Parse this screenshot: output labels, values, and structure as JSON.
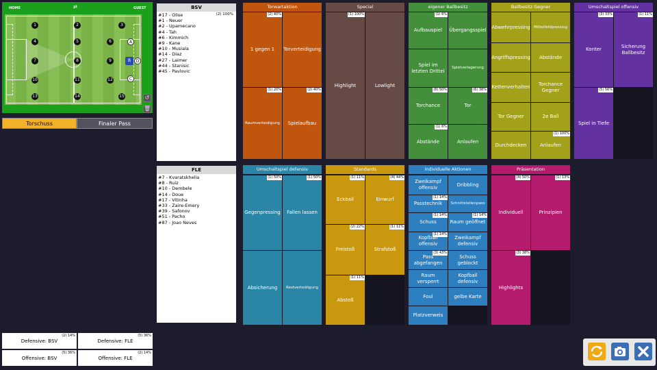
{
  "pitch": {
    "home_label": "HOME",
    "guest_label": "GUEST",
    "swap_label": "⇄",
    "home_players": [
      "1",
      "2",
      "3",
      "4",
      "5",
      "6",
      "7",
      "8",
      "9",
      "10",
      "11",
      "12",
      "13",
      "14",
      "15"
    ],
    "gk_label": "B",
    "away_players": [
      "A",
      "C",
      "D"
    ]
  },
  "modes": {
    "left": "Torschuss",
    "right": "Finaler Pass"
  },
  "teams": [
    {
      "name": "BSV",
      "count": "(2) 100%",
      "players": [
        "#17 - Olise",
        "#1 - Neuer",
        "#2 - Upamecano",
        "#4 - Tah",
        "#6 - Kimmich",
        "#9 - Kane",
        "#10 - Musiala",
        "#14 - Diaz",
        "#27 - Laimer",
        "#44 - Stanisic",
        "#45 - Pavlovic"
      ]
    },
    {
      "name": "FLE",
      "count": "",
      "players": [
        "#7 - Kvaratskhelia",
        "#8 - Ruiz",
        "#10 - Dembele",
        "#14 - Doue",
        "#17 - Vitinha",
        "#33 - Zaire-Emery",
        "#39 - Safonov",
        "#51 - Pacho",
        "#87 - Joao Neves"
      ]
    }
  ],
  "categories": [
    {
      "title": "Torwartaktion",
      "color": "#c0550e",
      "tiles": [
        {
          "label": "1 gegen 1",
          "count": "(2) 40%"
        },
        {
          "label": "Torverteidigung",
          "count": ""
        },
        {
          "label": "Raumverteidigung",
          "count": "(1) 20%"
        },
        {
          "label": "Spielaufbau",
          "count": "(2) 40%"
        }
      ]
    },
    {
      "title": "Special",
      "color": "#664a46",
      "tiles": [
        {
          "label": "Highlight",
          "count": "(1) 100%"
        },
        {
          "label": "Lowlight",
          "count": ""
        }
      ]
    },
    {
      "title": "eigener Ballbesitz",
      "color": "#438f3c",
      "tiles": [
        {
          "label": "Aufbauspiel",
          "count": "(1) 6%"
        },
        {
          "label": "Übergangsspiel",
          "count": ""
        },
        {
          "label": "Spiel im letzten Drittel",
          "count": ""
        },
        {
          "label": "Spielverlagerung",
          "count": ""
        },
        {
          "label": "Torchance",
          "count": "(8) 50%"
        },
        {
          "label": "Tor",
          "count": "(6) 38%"
        },
        {
          "label": "Abstände",
          "count": "(1) 6%"
        },
        {
          "label": "Anlaufen",
          "count": ""
        }
      ]
    },
    {
      "title": "Ballbesitz Gegner",
      "color": "#a3a11a",
      "tiles": [
        {
          "label": "Abwehrpressing",
          "count": ""
        },
        {
          "label": "Mittelfeldpressing",
          "count": ""
        },
        {
          "label": "Angriffspressing",
          "count": ""
        },
        {
          "label": "Abstände",
          "count": ""
        },
        {
          "label": "Kettenverhalten",
          "count": ""
        },
        {
          "label": "Torchance Gegner",
          "count": ""
        },
        {
          "label": "Tor Gegner",
          "count": ""
        },
        {
          "label": "2e Ball",
          "count": ""
        },
        {
          "label": "Durchdecken",
          "count": ""
        },
        {
          "label": "Anlaufen",
          "count": "(1) 100%"
        }
      ]
    },
    {
      "title": "Umschaltspiel offensiv",
      "color": "#6432a0",
      "tiles": [
        {
          "label": "Konter",
          "count": "(3) 33%"
        },
        {
          "label": "Sicherung Ballbesitz",
          "count": "(1) 11%"
        },
        {
          "label": "Spiel in Tiefe",
          "count": "(5) 56%"
        }
      ]
    },
    {
      "title": "Umschaltspiel defensiv",
      "color": "#2b85a6",
      "tiles": [
        {
          "label": "Gegenpressing",
          "count": "(1) 50%"
        },
        {
          "label": "Fallen lassen",
          "count": "(1) 50%"
        },
        {
          "label": "Absicherung",
          "count": ""
        },
        {
          "label": "Restverteidigung",
          "count": ""
        }
      ]
    },
    {
      "title": "Standards",
      "color": "#c9980e",
      "tiles": [
        {
          "label": "Eckball",
          "count": "(1) 11%"
        },
        {
          "label": "Einwurf",
          "count": "(4) 44%"
        },
        {
          "label": "Freistoß",
          "count": "(2) 22%"
        },
        {
          "label": "Strafstoß",
          "count": "(1) 11%"
        },
        {
          "label": "Abstoß",
          "count": "(1) 11%"
        }
      ]
    },
    {
      "title": "individuelle Aktionen",
      "color": "#2e7fc0",
      "tiles": [
        {
          "label": "Zweikampf offensiv",
          "count": ""
        },
        {
          "label": "Dribbling",
          "count": ""
        },
        {
          "label": "Passtechnik",
          "count": "(1) 14%"
        },
        {
          "label": "Schnittstellenpass",
          "count": ""
        },
        {
          "label": "Schuss",
          "count": "(1) 14%"
        },
        {
          "label": "Raum geöffnet",
          "count": "(1) 14%"
        },
        {
          "label": "Kopfball offensiv",
          "count": "(1) 14%"
        },
        {
          "label": "Zweikampf defensiv",
          "count": ""
        },
        {
          "label": "Pass abgefangen",
          "count": "(3) 43%"
        },
        {
          "label": "Schuss geblockt",
          "count": ""
        },
        {
          "label": "Raum versperrt",
          "count": ""
        },
        {
          "label": "Kopfball defensiv",
          "count": ""
        },
        {
          "label": "Foul",
          "count": ""
        },
        {
          "label": "gelbe Karte",
          "count": ""
        },
        {
          "label": "Platzverweis",
          "count": ""
        }
      ]
    },
    {
      "title": "Präsentation",
      "color": "#b51b6c",
      "tiles": [
        {
          "label": "Individuell",
          "count": "(4) 50%"
        },
        {
          "label": "Prinzipien",
          "count": "(1) 13%"
        },
        {
          "label": "Highlights",
          "count": "(3) 38%"
        }
      ]
    }
  ],
  "stats": [
    {
      "label": "Defensive: BSV",
      "count": "(2) 14%"
    },
    {
      "label": "Defensive: FLE",
      "count": "(5) 36%"
    },
    {
      "label": "Offensive: BSV",
      "count": "(5) 36%"
    },
    {
      "label": "Offensive: FLE",
      "count": "(2) 14%"
    }
  ],
  "toolbar": {
    "refresh_color": "#f0a815",
    "camera_color": "#3b6fb5",
    "close_color": "#3b6fb5"
  }
}
